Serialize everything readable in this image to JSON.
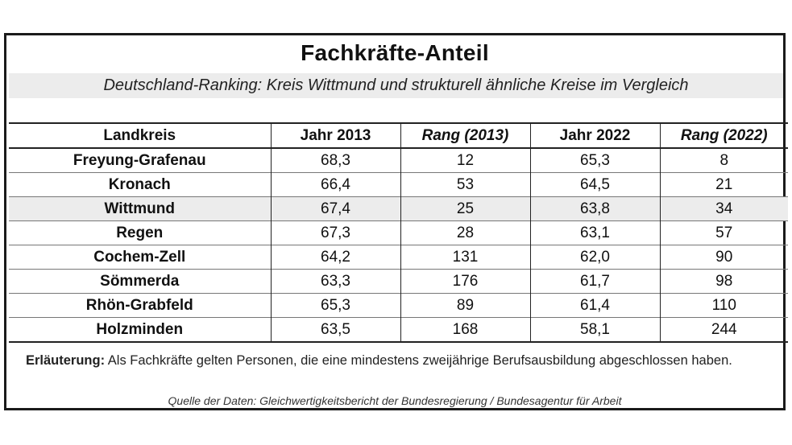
{
  "title": "Fachkräfte-Anteil",
  "subtitle": "Deutschland-Ranking: Kreis Wittmund und strukturell ähnliche Kreise im Vergleich",
  "table": {
    "headers": [
      "Landkreis",
      "Jahr 2013",
      "Rang (2013)",
      "Jahr 2022",
      "Rang (2022)"
    ],
    "rows": [
      [
        "Freyung-Grafenau",
        "68,3",
        "12",
        "65,3",
        "8"
      ],
      [
        "Kronach",
        "66,4",
        "53",
        "64,5",
        "21"
      ],
      [
        "Wittmund",
        "67,4",
        "25",
        "63,8",
        "34"
      ],
      [
        "Regen",
        "67,3",
        "28",
        "63,1",
        "57"
      ],
      [
        "Cochem-Zell",
        "64,2",
        "131",
        "62,0",
        "90"
      ],
      [
        "Sömmerda",
        "63,3",
        "176",
        "61,7",
        "98"
      ],
      [
        "Rhön-Grabfeld",
        "65,3",
        "89",
        "61,4",
        "110"
      ],
      [
        "Holzminden",
        "63,5",
        "168",
        "58,1",
        "244"
      ]
    ]
  },
  "explanation": {
    "label": "Erläuterung:",
    "text": " Als Fachkräfte gelten Personen, die eine mindestens zweijährige Berufsausbildung abgeschlossen haben."
  },
  "source": "Quelle der Daten: Gleichwertigkeitsbericht der Bundesregierung / Bundesagentur für Arbeit"
}
